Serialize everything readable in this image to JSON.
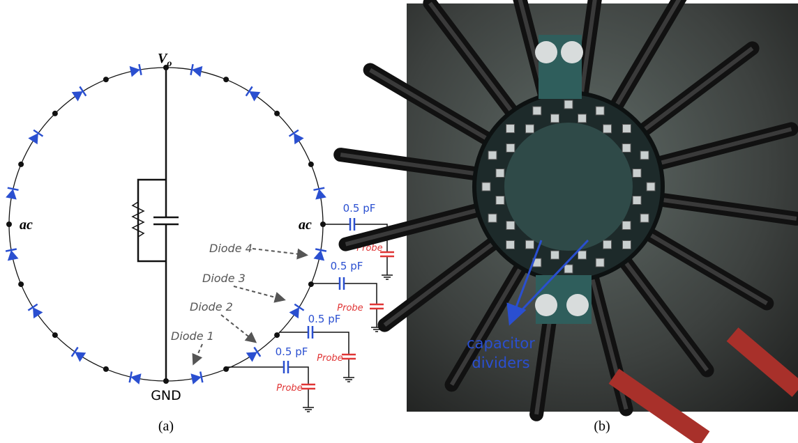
{
  "panel_a": {
    "output_node": {
      "main": "V",
      "sub": "o"
    },
    "ac_left": "ac",
    "ac_right": "ac",
    "ground": "GND",
    "capacitors": [
      "0.5 pF",
      "0.5 pF",
      "0.5 pF",
      "0.5 pF"
    ],
    "probes": [
      "Probe",
      "Probe",
      "Probe",
      "Probe"
    ],
    "diodes": [
      "Diode 1",
      "Diode 2",
      "Diode 3",
      "Diode 4"
    ],
    "caption": "(a)"
  },
  "panel_b": {
    "annotation": [
      "capacitor",
      "dividers"
    ],
    "caption": "(b)"
  }
}
